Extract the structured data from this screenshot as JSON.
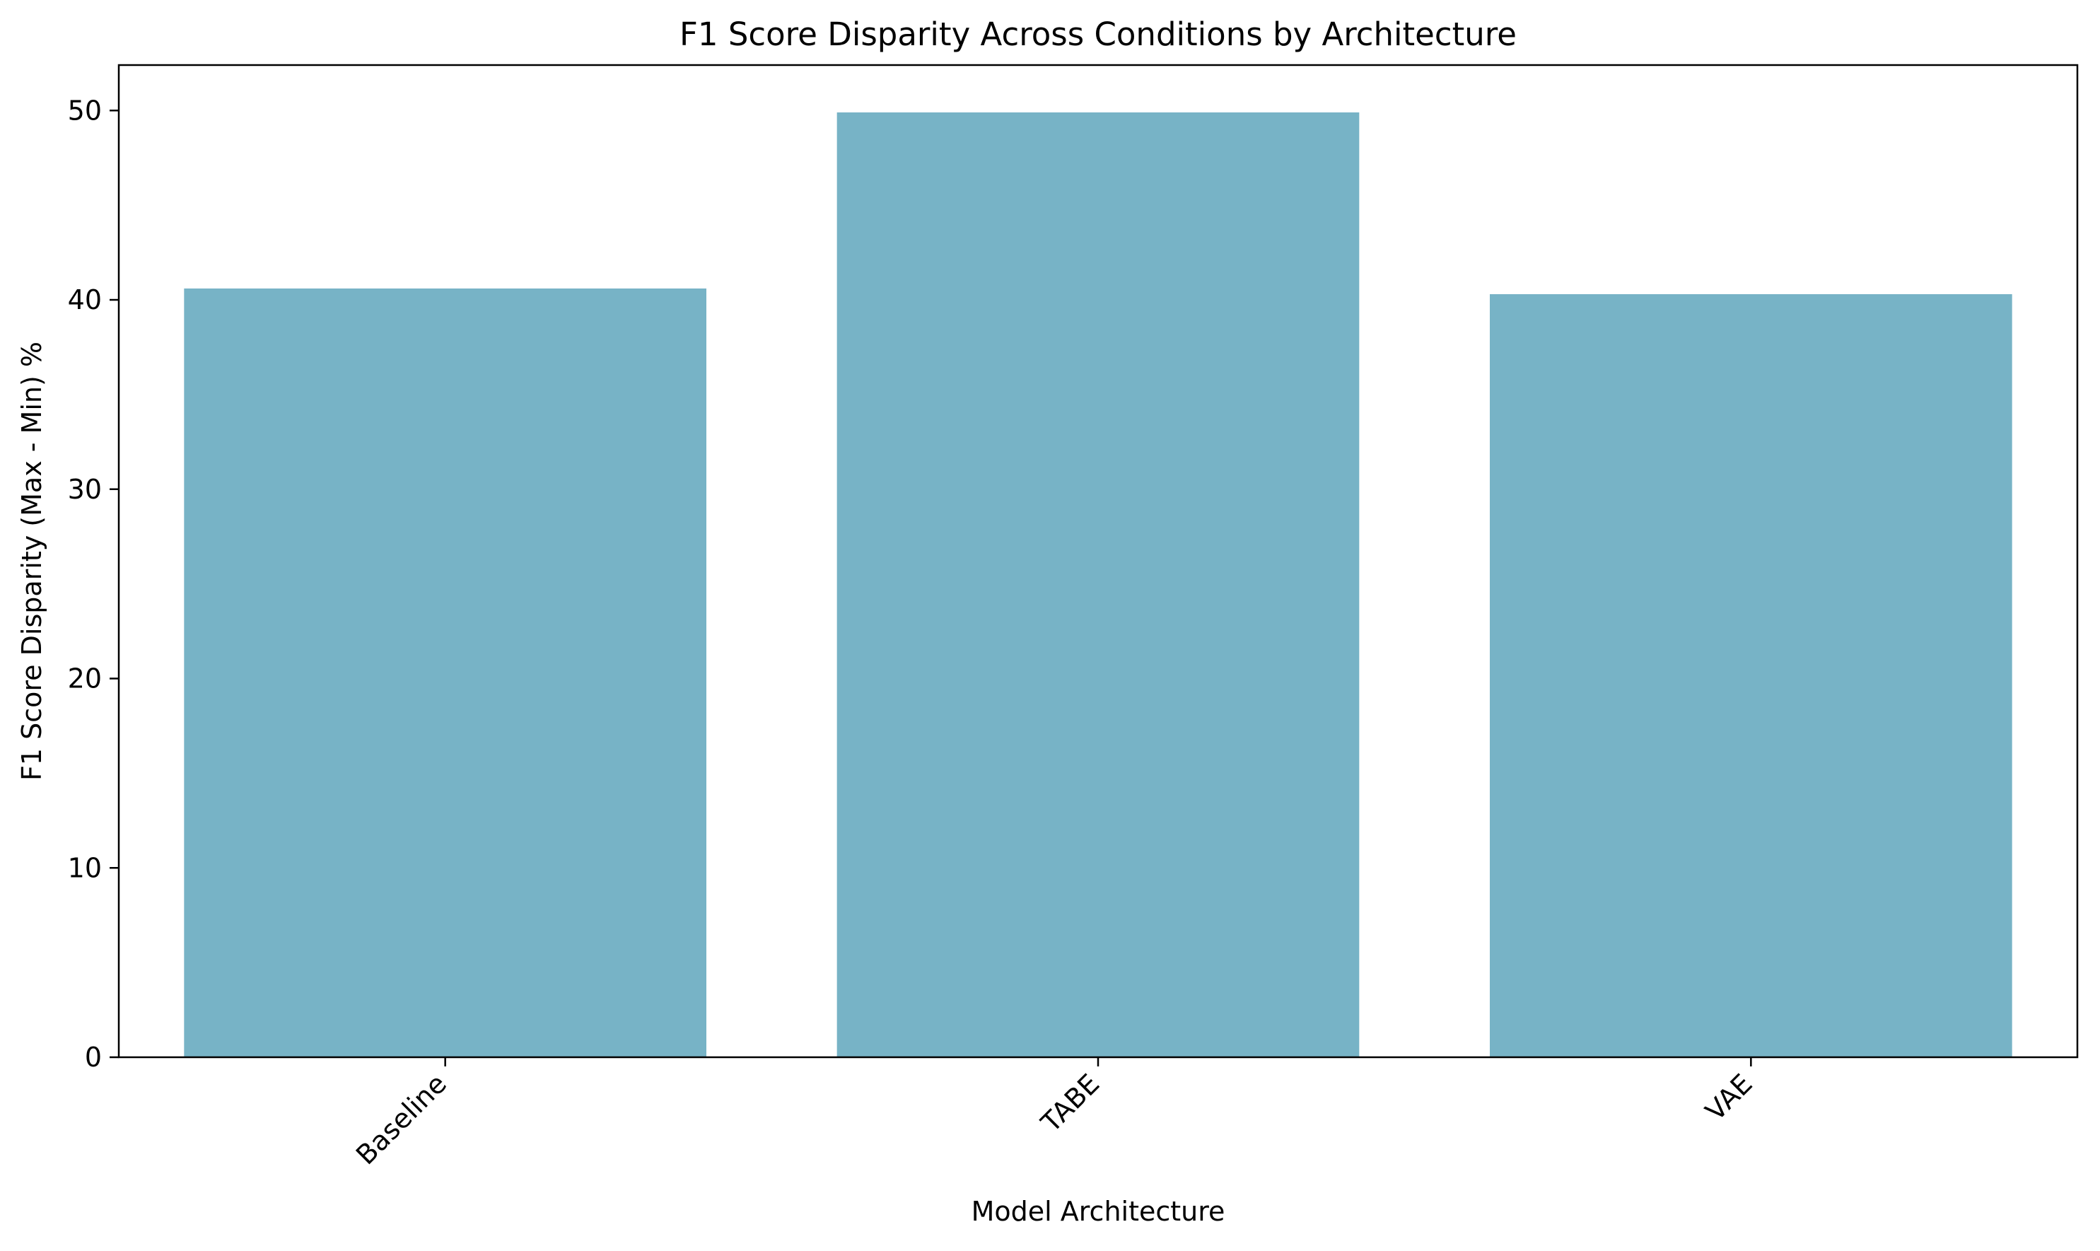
{
  "chart_data": {
    "type": "bar",
    "title": "F1 Score Disparity Across Conditions by Architecture",
    "xlabel": "Model Architecture",
    "ylabel": "F1 Score Disparity (Max - Min) %",
    "categories": [
      "Baseline",
      "TABE",
      "VAE"
    ],
    "values": [
      40.6,
      49.9,
      40.3
    ],
    "ylim": [
      0,
      52.4
    ],
    "yticks": [
      0,
      10,
      20,
      30,
      40,
      50
    ],
    "grid": false,
    "legend": "none",
    "bar_color": "#77b3c6",
    "x_tick_rotation_deg": -45
  }
}
